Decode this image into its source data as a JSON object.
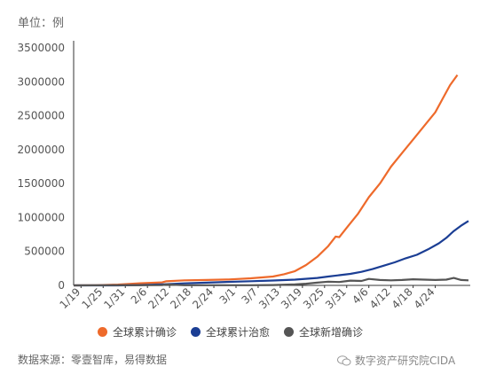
{
  "unit_label": "单位：例",
  "source_text": "数据来源：零壹智库，易得数据",
  "watermark_text": "数字资产研究院CIDA",
  "chart_data": {
    "type": "line",
    "y_ticks": [
      "0",
      "500000",
      "1000000",
      "1500000",
      "2000000",
      "2500000",
      "3000000",
      "3500000"
    ],
    "ylim": [
      0,
      3500000
    ],
    "x_ticks": [
      "1/19",
      "1/25",
      "1/31",
      "2/6",
      "2/12",
      "2/18",
      "2/24",
      "3/1",
      "3/7",
      "3/13",
      "3/19",
      "3/25",
      "3/31",
      "4/6",
      "4/12",
      "4/18",
      "4/24"
    ],
    "x_start_day": 0,
    "x_end_day": 101,
    "grid": false,
    "legend_position": "bottom",
    "series": [
      {
        "name": "全球累计确诊",
        "color": "#ee6a2b",
        "points": [
          [
            0,
            300
          ],
          [
            6,
            2000
          ],
          [
            12,
            12000
          ],
          [
            18,
            31000
          ],
          [
            24,
            45000
          ],
          [
            25,
            60000
          ],
          [
            30,
            75000
          ],
          [
            36,
            80000
          ],
          [
            42,
            88000
          ],
          [
            48,
            105000
          ],
          [
            54,
            130000
          ],
          [
            57,
            165000
          ],
          [
            60,
            210000
          ],
          [
            63,
            300000
          ],
          [
            66,
            420000
          ],
          [
            69,
            580000
          ],
          [
            71,
            720000
          ],
          [
            72,
            710000
          ],
          [
            74,
            850000
          ],
          [
            77,
            1050000
          ],
          [
            80,
            1300000
          ],
          [
            83,
            1500000
          ],
          [
            86,
            1750000
          ],
          [
            89,
            1950000
          ],
          [
            92,
            2150000
          ],
          [
            95,
            2350000
          ],
          [
            98,
            2550000
          ],
          [
            100,
            2750000
          ],
          [
            102,
            2950000
          ],
          [
            104,
            3100000
          ]
        ]
      },
      {
        "name": "全球累计治愈",
        "color": "#1b3e94",
        "points": [
          [
            0,
            0
          ],
          [
            12,
            500
          ],
          [
            18,
            5000
          ],
          [
            24,
            15000
          ],
          [
            30,
            30000
          ],
          [
            36,
            40000
          ],
          [
            42,
            52000
          ],
          [
            48,
            62000
          ],
          [
            54,
            72000
          ],
          [
            60,
            85000
          ],
          [
            66,
            110000
          ],
          [
            69,
            130000
          ],
          [
            72,
            150000
          ],
          [
            75,
            170000
          ],
          [
            78,
            200000
          ],
          [
            81,
            240000
          ],
          [
            84,
            290000
          ],
          [
            87,
            340000
          ],
          [
            90,
            400000
          ],
          [
            93,
            450000
          ],
          [
            96,
            530000
          ],
          [
            99,
            620000
          ],
          [
            101,
            700000
          ],
          [
            103,
            800000
          ],
          [
            105,
            880000
          ],
          [
            107,
            950000
          ]
        ]
      },
      {
        "name": "全球新增确诊",
        "color": "#555555",
        "points": [
          [
            0,
            100
          ],
          [
            12,
            2000
          ],
          [
            18,
            3000
          ],
          [
            24,
            4000
          ],
          [
            25,
            15000
          ],
          [
            30,
            2000
          ],
          [
            36,
            3000
          ],
          [
            42,
            2000
          ],
          [
            48,
            3000
          ],
          [
            54,
            5000
          ],
          [
            60,
            15000
          ],
          [
            63,
            25000
          ],
          [
            66,
            40000
          ],
          [
            69,
            55000
          ],
          [
            72,
            50000
          ],
          [
            75,
            70000
          ],
          [
            78,
            65000
          ],
          [
            80,
            95000
          ],
          [
            83,
            80000
          ],
          [
            86,
            75000
          ],
          [
            89,
            80000
          ],
          [
            92,
            90000
          ],
          [
            95,
            85000
          ],
          [
            98,
            80000
          ],
          [
            101,
            85000
          ],
          [
            103,
            110000
          ],
          [
            105,
            80000
          ],
          [
            107,
            75000
          ]
        ]
      }
    ]
  }
}
